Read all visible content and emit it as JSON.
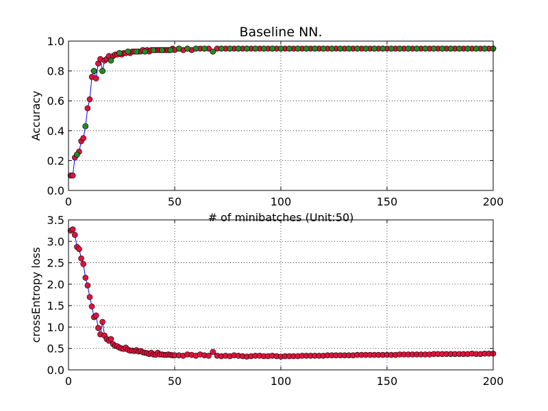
{
  "chart_data": [
    {
      "type": "line",
      "title": "Baseline NN.",
      "xlabel": "# of minibatches (Unit:50)",
      "ylabel": "Accuracy",
      "xlim": [
        0,
        200
      ],
      "ylim": [
        0.0,
        1.0
      ],
      "xticks": [
        "0",
        "50",
        "100",
        "150",
        "200"
      ],
      "yticks": [
        "0.0",
        "0.2",
        "0.4",
        "0.6",
        "0.8",
        "1.0"
      ],
      "grid": true,
      "colors": {
        "line": "#0000ff",
        "marker_red": "#dc143c",
        "marker_green": "#228b22"
      },
      "series": [
        {
          "x": [
            1,
            2,
            3,
            4,
            5,
            6,
            7,
            8,
            9,
            10,
            11,
            12,
            13,
            14,
            15,
            16,
            17,
            18,
            19,
            20,
            21,
            22,
            23,
            24,
            25,
            26,
            27,
            28,
            29,
            30,
            31,
            32,
            33,
            34,
            35,
            36,
            37,
            38,
            39,
            40,
            41,
            42,
            43,
            44,
            45,
            46,
            47,
            48,
            49,
            50,
            52,
            54,
            56,
            58,
            60,
            62,
            64,
            66,
            68,
            70,
            72,
            74,
            76,
            78,
            80,
            82,
            84,
            86,
            88,
            90,
            92,
            94,
            96,
            98,
            100,
            102,
            104,
            106,
            108,
            110,
            112,
            114,
            116,
            118,
            120,
            122,
            124,
            126,
            128,
            130,
            132,
            134,
            136,
            138,
            140,
            142,
            144,
            146,
            148,
            150,
            152,
            154,
            156,
            158,
            160,
            162,
            164,
            166,
            168,
            170,
            172,
            174,
            176,
            178,
            180,
            182,
            184,
            186,
            188,
            190,
            192,
            194,
            196,
            198,
            200
          ],
          "values": [
            0.1,
            0.1,
            0.22,
            0.24,
            0.26,
            0.33,
            0.35,
            0.43,
            0.55,
            0.61,
            0.76,
            0.8,
            0.75,
            0.85,
            0.88,
            0.8,
            0.87,
            0.88,
            0.9,
            0.87,
            0.9,
            0.91,
            0.91,
            0.92,
            0.91,
            0.92,
            0.92,
            0.93,
            0.92,
            0.93,
            0.93,
            0.93,
            0.93,
            0.93,
            0.94,
            0.93,
            0.94,
            0.93,
            0.94,
            0.94,
            0.94,
            0.94,
            0.94,
            0.94,
            0.94,
            0.94,
            0.94,
            0.94,
            0.95,
            0.94,
            0.95,
            0.94,
            0.95,
            0.94,
            0.95,
            0.95,
            0.95,
            0.95,
            0.93,
            0.95,
            0.95,
            0.95,
            0.95,
            0.95,
            0.95,
            0.95,
            0.95,
            0.95,
            0.95,
            0.95,
            0.95,
            0.95,
            0.95,
            0.95,
            0.95,
            0.95,
            0.95,
            0.95,
            0.95,
            0.95,
            0.95,
            0.95,
            0.95,
            0.95,
            0.95,
            0.95,
            0.95,
            0.95,
            0.95,
            0.95,
            0.95,
            0.95,
            0.95,
            0.95,
            0.95,
            0.95,
            0.95,
            0.95,
            0.95,
            0.95,
            0.95,
            0.95,
            0.95,
            0.95,
            0.95,
            0.95,
            0.95,
            0.95,
            0.95,
            0.95,
            0.95,
            0.95,
            0.95,
            0.95,
            0.95,
            0.95,
            0.95,
            0.95,
            0.95,
            0.95,
            0.95,
            0.95,
            0.95,
            0.95,
            0.95
          ],
          "green_markers_x": [
            4,
            8,
            12,
            16,
            20,
            24,
            28,
            32,
            36,
            40,
            44,
            48,
            52,
            56,
            60,
            64,
            68,
            72,
            76,
            80,
            84,
            88,
            92,
            96,
            100,
            104,
            108,
            112,
            116,
            120,
            124,
            128,
            132,
            136,
            140,
            144,
            148,
            152,
            156,
            160,
            164,
            168,
            172,
            176,
            180,
            184,
            188,
            192,
            196,
            200
          ]
        }
      ]
    },
    {
      "type": "line",
      "title": "",
      "xlabel": "",
      "ylabel": "crossEntropy loss",
      "xlim": [
        0,
        200
      ],
      "ylim": [
        0.0,
        3.5
      ],
      "xticks": [
        "0",
        "50",
        "100",
        "150",
        "200"
      ],
      "yticks": [
        "0.0",
        "0.5",
        "1.0",
        "1.5",
        "2.0",
        "2.5",
        "3.0",
        "3.5"
      ],
      "grid": true,
      "colors": {
        "line": "#0000ff",
        "marker_red": "#dc143c"
      },
      "series": [
        {
          "x": [
            1,
            2,
            3,
            4,
            5,
            6,
            7,
            8,
            9,
            10,
            11,
            12,
            13,
            14,
            15,
            16,
            17,
            18,
            19,
            20,
            21,
            22,
            23,
            24,
            25,
            26,
            27,
            28,
            29,
            30,
            31,
            32,
            33,
            34,
            35,
            36,
            37,
            38,
            39,
            40,
            41,
            42,
            43,
            44,
            45,
            46,
            47,
            48,
            49,
            50,
            52,
            54,
            56,
            58,
            60,
            62,
            64,
            66,
            68,
            70,
            72,
            74,
            76,
            78,
            80,
            82,
            84,
            86,
            88,
            90,
            92,
            94,
            96,
            98,
            100,
            102,
            104,
            106,
            108,
            110,
            112,
            114,
            116,
            118,
            120,
            122,
            124,
            126,
            128,
            130,
            132,
            134,
            136,
            138,
            140,
            142,
            144,
            146,
            148,
            150,
            152,
            154,
            156,
            158,
            160,
            162,
            164,
            166,
            168,
            170,
            172,
            174,
            176,
            178,
            180,
            182,
            184,
            186,
            188,
            190,
            192,
            194,
            196,
            198,
            200
          ],
          "values": [
            3.25,
            3.28,
            3.15,
            2.87,
            2.82,
            2.6,
            2.47,
            2.15,
            1.97,
            1.7,
            1.48,
            1.23,
            1.27,
            0.98,
            0.83,
            1.12,
            0.8,
            0.72,
            0.68,
            0.72,
            0.6,
            0.56,
            0.55,
            0.52,
            0.5,
            0.49,
            0.52,
            0.47,
            0.45,
            0.45,
            0.44,
            0.46,
            0.43,
            0.44,
            0.41,
            0.4,
            0.39,
            0.37,
            0.4,
            0.36,
            0.35,
            0.4,
            0.36,
            0.36,
            0.35,
            0.35,
            0.36,
            0.35,
            0.34,
            0.34,
            0.34,
            0.33,
            0.36,
            0.35,
            0.33,
            0.36,
            0.34,
            0.33,
            0.42,
            0.33,
            0.32,
            0.33,
            0.32,
            0.34,
            0.33,
            0.32,
            0.31,
            0.32,
            0.33,
            0.33,
            0.32,
            0.32,
            0.33,
            0.32,
            0.31,
            0.32,
            0.32,
            0.32,
            0.32,
            0.33,
            0.33,
            0.33,
            0.33,
            0.33,
            0.33,
            0.34,
            0.34,
            0.34,
            0.34,
            0.34,
            0.34,
            0.34,
            0.35,
            0.35,
            0.35,
            0.35,
            0.35,
            0.35,
            0.35,
            0.35,
            0.35,
            0.35,
            0.36,
            0.36,
            0.36,
            0.36,
            0.36,
            0.36,
            0.36,
            0.36,
            0.37,
            0.37,
            0.37,
            0.37,
            0.37,
            0.37,
            0.37,
            0.37,
            0.37,
            0.38,
            0.37,
            0.37,
            0.38,
            0.38,
            0.38
          ]
        }
      ]
    }
  ]
}
